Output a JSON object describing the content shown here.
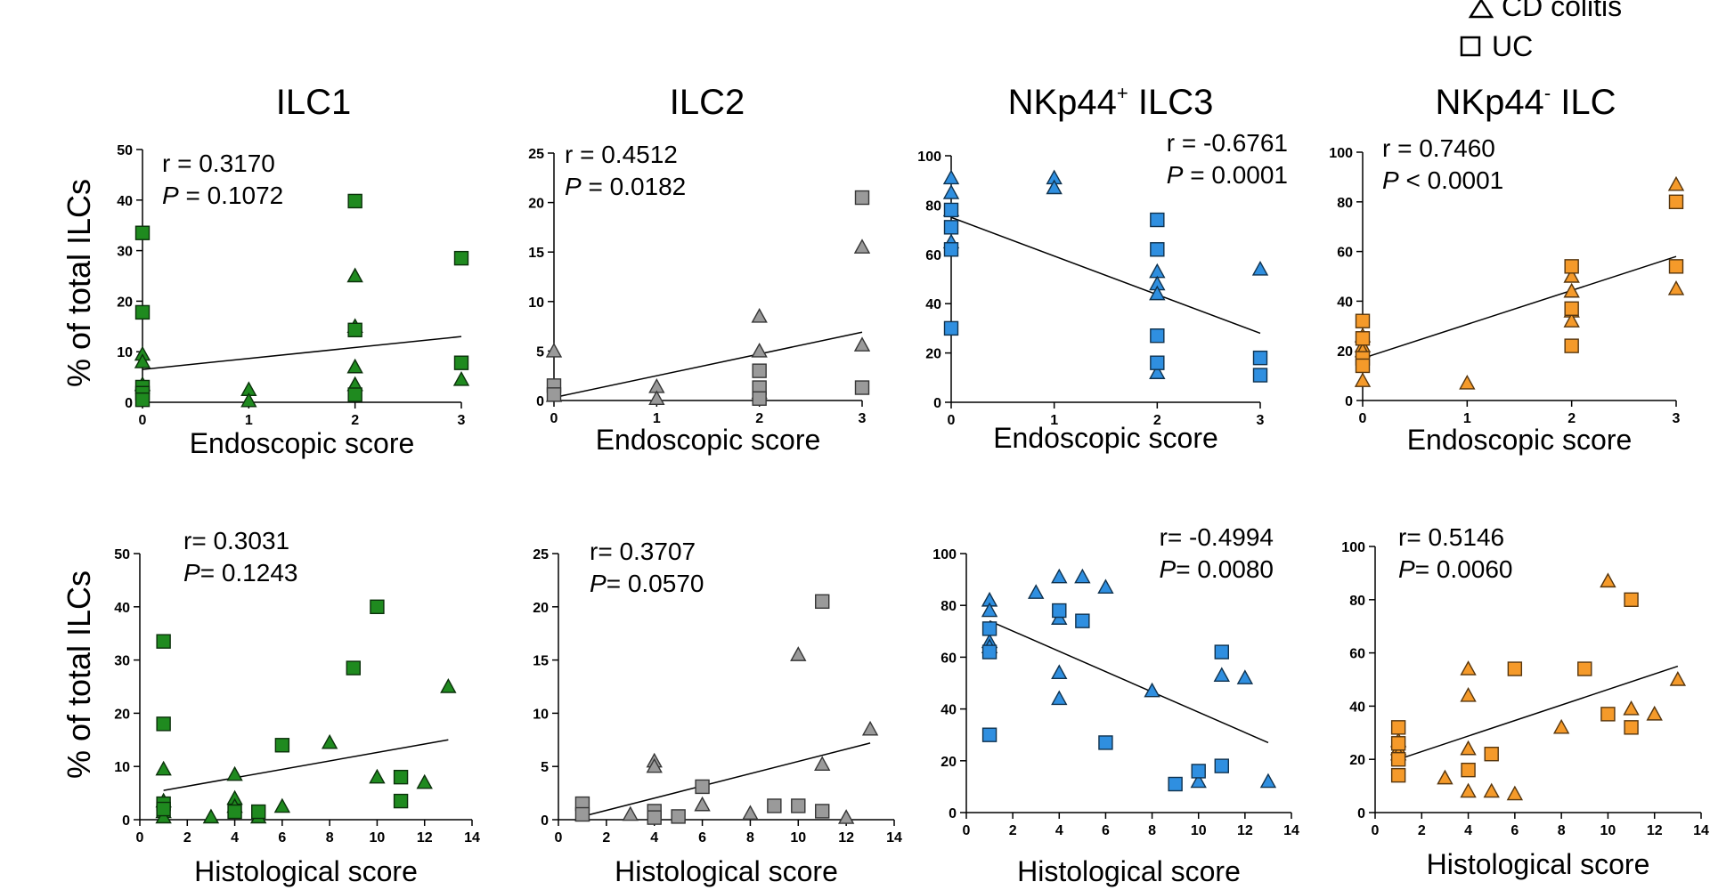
{
  "legend": {
    "entries": [
      {
        "marker": "triangle",
        "label": "CD colitis"
      },
      {
        "marker": "square",
        "label": "UC"
      }
    ]
  },
  "colors": {
    "ILC1": "#1f8a1f",
    "ILC2": "#9a9a9a",
    "NKp44pos": "#2f8fe0",
    "NKp44neg": "#f59a2a"
  },
  "column_titles": [
    {
      "main": "ILC1",
      "sup": "",
      "sub": ""
    },
    {
      "main": "ILC2",
      "sup": "",
      "sub": ""
    },
    {
      "main": "NKp44",
      "sup": "+",
      "sub": " ILC3"
    },
    {
      "main": "NKp44",
      "sup": "-",
      "sub": " ILC"
    }
  ],
  "y_label": "% of total ILCs",
  "chart_data": [
    {
      "type": "scatter",
      "title": "ILC1",
      "xlabel": "Endoscopic score",
      "ylabel": "% of total ILCs",
      "color_key": "ILC1",
      "xlim": [
        0,
        3
      ],
      "ylim": [
        0,
        50
      ],
      "xticks": [
        0,
        1,
        2,
        3
      ],
      "yticks": [
        0,
        10,
        20,
        30,
        40,
        50
      ],
      "stats": {
        "r_label": "r = ",
        "r": "0.3170",
        "p_label": "P",
        "p_op": " = ",
        "p": "0.1072"
      },
      "fit": [
        [
          0,
          6.5
        ],
        [
          3,
          13
        ]
      ],
      "series": [
        {
          "name": "CD colitis",
          "marker": "triangle",
          "points": [
            [
              0,
              9.5
            ],
            [
              0,
              8
            ],
            [
              0,
              3.5
            ],
            [
              1,
              2.5
            ],
            [
              1,
              0.3
            ],
            [
              2,
              25
            ],
            [
              2,
              15
            ],
            [
              2,
              7
            ],
            [
              2,
              3.5
            ],
            [
              3,
              4.5
            ]
          ]
        },
        {
          "name": "UC",
          "marker": "square",
          "points": [
            [
              0,
              33.5
            ],
            [
              0,
              17.8
            ],
            [
              0,
              3
            ],
            [
              0,
              1.8
            ],
            [
              0,
              0.5
            ],
            [
              2,
              39.8
            ],
            [
              2,
              14.3
            ],
            [
              2,
              1.5
            ],
            [
              3,
              28.5
            ],
            [
              3,
              7.8
            ]
          ]
        }
      ]
    },
    {
      "type": "scatter",
      "title": "ILC2",
      "xlabel": "Endoscopic score",
      "ylabel": "% of total ILCs",
      "color_key": "ILC2",
      "xlim": [
        0,
        3
      ],
      "ylim": [
        0,
        25
      ],
      "xticks": [
        0,
        1,
        2,
        3
      ],
      "yticks": [
        0,
        5,
        10,
        15,
        20,
        25
      ],
      "stats": {
        "r_label": "r = ",
        "r": "0.4512",
        "p_label": "P",
        "p_op": " = ",
        "p": "0.0182"
      },
      "fit": [
        [
          0,
          0.3
        ],
        [
          3,
          6.9
        ]
      ],
      "series": [
        {
          "name": "CD colitis",
          "marker": "triangle",
          "points": [
            [
              0,
              5
            ],
            [
              0,
              0.5
            ],
            [
              1,
              1.4
            ],
            [
              1,
              0.2
            ],
            [
              2,
              8.5
            ],
            [
              2,
              5
            ],
            [
              2,
              0.8
            ],
            [
              3,
              15.5
            ],
            [
              3,
              5.6
            ]
          ]
        },
        {
          "name": "UC",
          "marker": "square",
          "points": [
            [
              0,
              1.5
            ],
            [
              0,
              0.6
            ],
            [
              2,
              3
            ],
            [
              2,
              1.3
            ],
            [
              2,
              0.2
            ],
            [
              3,
              20.5
            ],
            [
              3,
              1.3
            ]
          ]
        }
      ]
    },
    {
      "type": "scatter",
      "title": "NKp44+ ILC3",
      "xlabel": "Endoscopic score",
      "ylabel": "% of total ILCs",
      "color_key": "NKp44pos",
      "xlim": [
        0,
        3
      ],
      "ylim": [
        0,
        100
      ],
      "xticks": [
        0,
        1,
        2,
        3
      ],
      "yticks": [
        0,
        20,
        40,
        60,
        80,
        100
      ],
      "stats": {
        "r_label": "r = ",
        "r": "-0.6761",
        "p_label": "P",
        "p_op": " = ",
        "p": "0.0001"
      },
      "fit": [
        [
          0,
          75
        ],
        [
          3,
          28
        ]
      ],
      "series": [
        {
          "name": "CD colitis",
          "marker": "triangle",
          "points": [
            [
              0,
              91
            ],
            [
              0,
              85
            ],
            [
              0,
              78
            ],
            [
              0,
              65
            ],
            [
              1,
              91
            ],
            [
              1,
              87
            ],
            [
              2,
              53
            ],
            [
              2,
              48
            ],
            [
              2,
              44
            ],
            [
              2,
              12
            ],
            [
              3,
              54
            ]
          ]
        },
        {
          "name": "UC",
          "marker": "square",
          "points": [
            [
              0,
              78
            ],
            [
              0,
              71
            ],
            [
              0,
              62
            ],
            [
              0,
              30
            ],
            [
              2,
              74
            ],
            [
              2,
              62
            ],
            [
              2,
              27
            ],
            [
              2,
              16
            ],
            [
              3,
              18
            ],
            [
              3,
              11
            ]
          ]
        }
      ]
    },
    {
      "type": "scatter",
      "title": "NKp44- ILC",
      "xlabel": "Endoscopic score",
      "ylabel": "% of total ILCs",
      "color_key": "NKp44neg",
      "xlim": [
        0,
        3
      ],
      "ylim": [
        0,
        100
      ],
      "xticks": [
        0,
        1,
        2,
        3
      ],
      "yticks": [
        0,
        20,
        40,
        60,
        80,
        100
      ],
      "stats": {
        "r_label": "r = ",
        "r": "0.7460",
        "p_label": "P",
        "p_op": " < ",
        "p": "0.0001"
      },
      "fit": [
        [
          0,
          17
        ],
        [
          3,
          58
        ]
      ],
      "series": [
        {
          "name": "CD colitis",
          "marker": "triangle",
          "points": [
            [
              0,
              26
            ],
            [
              0,
              22
            ],
            [
              0,
              20
            ],
            [
              0,
              8
            ],
            [
              1,
              7
            ],
            [
              2,
              50
            ],
            [
              2,
              44
            ],
            [
              2,
              36
            ],
            [
              2,
              32
            ],
            [
              3,
              87
            ],
            [
              3,
              45
            ]
          ]
        },
        {
          "name": "UC",
          "marker": "square",
          "points": [
            [
              0,
              32
            ],
            [
              0,
              25
            ],
            [
              0,
              17
            ],
            [
              0,
              14
            ],
            [
              2,
              54
            ],
            [
              2,
              37
            ],
            [
              2,
              22
            ],
            [
              3,
              80
            ],
            [
              3,
              54
            ]
          ]
        }
      ]
    },
    {
      "type": "scatter",
      "title": "ILC1",
      "xlabel": "Histological score",
      "ylabel": "% of total ILCs",
      "color_key": "ILC1",
      "xlim": [
        0,
        14
      ],
      "ylim": [
        0,
        50
      ],
      "xticks": [
        0,
        2,
        4,
        6,
        8,
        10,
        12,
        14
      ],
      "yticks": [
        0,
        10,
        20,
        30,
        40,
        50
      ],
      "stats": {
        "r_label": "r= ",
        "r": "0.3031",
        "p_label": "P",
        "p_op": "= ",
        "p": "0.1243"
      },
      "fit": [
        [
          1,
          5.5
        ],
        [
          13,
          15
        ]
      ],
      "series": [
        {
          "name": "CD colitis",
          "marker": "triangle",
          "points": [
            [
              1,
              9.5
            ],
            [
              1,
              3.5
            ],
            [
              1,
              1.5
            ],
            [
              1,
              0.5
            ],
            [
              3,
              0.5
            ],
            [
              4,
              8.5
            ],
            [
              4,
              4
            ],
            [
              4,
              2.5
            ],
            [
              5,
              0.5
            ],
            [
              6,
              2.5
            ],
            [
              8,
              14.5
            ],
            [
              10,
              8
            ],
            [
              12,
              7
            ],
            [
              13,
              25
            ]
          ]
        },
        {
          "name": "UC",
          "marker": "square",
          "points": [
            [
              1,
              33.5
            ],
            [
              1,
              18
            ],
            [
              1,
              3
            ],
            [
              1,
              2
            ],
            [
              4,
              1.5
            ],
            [
              5,
              1.5
            ],
            [
              6,
              14
            ],
            [
              9,
              28.5
            ],
            [
              10,
              40
            ],
            [
              11,
              8
            ],
            [
              11,
              3.5
            ]
          ]
        }
      ]
    },
    {
      "type": "scatter",
      "title": "ILC2",
      "xlabel": "Histological score",
      "ylabel": "% of total ILCs",
      "color_key": "ILC2",
      "xlim": [
        0,
        14
      ],
      "ylim": [
        0,
        25
      ],
      "xticks": [
        0,
        2,
        4,
        6,
        8,
        10,
        12,
        14
      ],
      "yticks": [
        0,
        5,
        10,
        15,
        20,
        25
      ],
      "stats": {
        "r_label": "r= ",
        "r": "0.3707",
        "p_label": "P",
        "p_op": "= ",
        "p": "0.0570"
      },
      "fit": [
        [
          1,
          0.3
        ],
        [
          13,
          7.2
        ]
      ],
      "series": [
        {
          "name": "CD colitis",
          "marker": "triangle",
          "points": [
            [
              1,
              0.5
            ],
            [
              3,
              0.5
            ],
            [
              4,
              5.5
            ],
            [
              4,
              5
            ],
            [
              6,
              1.4
            ],
            [
              8,
              0.6
            ],
            [
              10,
              15.5
            ],
            [
              11,
              5.2
            ],
            [
              12,
              0.2
            ],
            [
              13,
              8.5
            ]
          ]
        },
        {
          "name": "UC",
          "marker": "square",
          "points": [
            [
              1,
              1.5
            ],
            [
              1,
              0.5
            ],
            [
              4,
              0.8
            ],
            [
              4,
              0.2
            ],
            [
              5,
              0.3
            ],
            [
              6,
              3.1
            ],
            [
              9,
              1.3
            ],
            [
              10,
              1.3
            ],
            [
              11,
              20.5
            ],
            [
              11,
              0.8
            ]
          ]
        }
      ]
    },
    {
      "type": "scatter",
      "title": "NKp44+ ILC3",
      "xlabel": "Histological score",
      "ylabel": "% of total ILCs",
      "color_key": "NKp44pos",
      "xlim": [
        0,
        14
      ],
      "ylim": [
        0,
        100
      ],
      "xticks": [
        0,
        2,
        4,
        6,
        8,
        10,
        12,
        14
      ],
      "yticks": [
        0,
        20,
        40,
        60,
        80,
        100
      ],
      "stats": {
        "r_label": "r= ",
        "r": "-0.4994",
        "p_label": "P",
        "p_op": "= ",
        "p": "0.0080"
      },
      "fit": [
        [
          1,
          74
        ],
        [
          13,
          27
        ]
      ],
      "series": [
        {
          "name": "CD colitis",
          "marker": "triangle",
          "points": [
            [
              1,
              82
            ],
            [
              1,
              78
            ],
            [
              1,
              66
            ],
            [
              1,
              64
            ],
            [
              3,
              85
            ],
            [
              4,
              91
            ],
            [
              4,
              75
            ],
            [
              4,
              54
            ],
            [
              4,
              44
            ],
            [
              5,
              91
            ],
            [
              6,
              87
            ],
            [
              8,
              47
            ],
            [
              10,
              12
            ],
            [
              11,
              53
            ],
            [
              12,
              52
            ],
            [
              13,
              12
            ]
          ]
        },
        {
          "name": "UC",
          "marker": "square",
          "points": [
            [
              1,
              71
            ],
            [
              1,
              62
            ],
            [
              1,
              30
            ],
            [
              4,
              78
            ],
            [
              5,
              74
            ],
            [
              6,
              27
            ],
            [
              9,
              11
            ],
            [
              10,
              16
            ],
            [
              11,
              62
            ],
            [
              11,
              18
            ]
          ]
        }
      ]
    },
    {
      "type": "scatter",
      "title": "NKp44- ILC",
      "xlabel": "Histological score",
      "ylabel": "% of total ILCs",
      "color_key": "NKp44neg",
      "xlim": [
        0,
        14
      ],
      "ylim": [
        0,
        100
      ],
      "xticks": [
        0,
        2,
        4,
        6,
        8,
        10,
        12,
        14
      ],
      "yticks": [
        0,
        20,
        40,
        60,
        80,
        100
      ],
      "stats": {
        "r_label": "r= ",
        "r": "0.5146",
        "p_label": "P",
        "p_op": "= ",
        "p": "0.0060"
      },
      "fit": [
        [
          1,
          20
        ],
        [
          13,
          55
        ]
      ],
      "series": [
        {
          "name": "CD colitis",
          "marker": "triangle",
          "points": [
            [
              1,
              27
            ],
            [
              1,
              24
            ],
            [
              1,
              22
            ],
            [
              3,
              13
            ],
            [
              4,
              54
            ],
            [
              4,
              44
            ],
            [
              4,
              24
            ],
            [
              4,
              8
            ],
            [
              5,
              8
            ],
            [
              6,
              7
            ],
            [
              8,
              32
            ],
            [
              10,
              87
            ],
            [
              11,
              39
            ],
            [
              12,
              37
            ],
            [
              13,
              50
            ]
          ]
        },
        {
          "name": "UC",
          "marker": "square",
          "points": [
            [
              1,
              32
            ],
            [
              1,
              26
            ],
            [
              1,
              20
            ],
            [
              1,
              14
            ],
            [
              4,
              16
            ],
            [
              5,
              22
            ],
            [
              6,
              54
            ],
            [
              9,
              54
            ],
            [
              10,
              37
            ],
            [
              11,
              80
            ],
            [
              11,
              32
            ]
          ]
        }
      ]
    }
  ]
}
